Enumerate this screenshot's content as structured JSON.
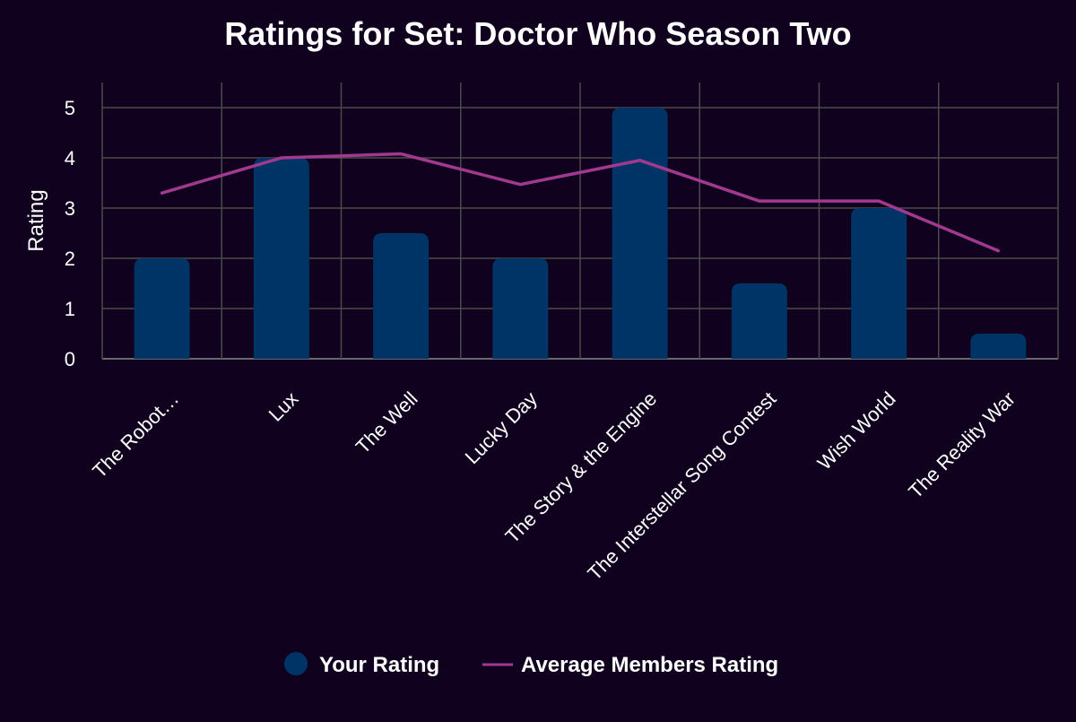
{
  "chart_data": {
    "type": "bar",
    "title": "Ratings for Set: Doctor Who Season Two",
    "ylabel": "Rating",
    "xlabel": "",
    "ylim": [
      0,
      5.5
    ],
    "yticks": [
      0,
      1,
      2,
      3,
      4,
      5
    ],
    "categories": [
      "The Robot…",
      "Lux",
      "The Well",
      "Lucky Day",
      "The Story & the Engine",
      "The Interstellar Song Contest",
      "Wish World",
      "The Reality War"
    ],
    "series": [
      {
        "name": "Your Rating",
        "kind": "bar",
        "color": "#003366",
        "values": [
          2,
          4,
          2.5,
          2,
          5,
          1.5,
          3,
          0.5
        ]
      },
      {
        "name": "Average Members Rating",
        "kind": "line",
        "color": "#a2398f",
        "values": [
          3.3,
          4.0,
          4.08,
          3.47,
          3.95,
          3.14,
          3.14,
          2.15
        ]
      }
    ],
    "grid": true,
    "legend_position": "bottom-center",
    "colors": {
      "background": "#10021e",
      "grid": "#4a4a4a",
      "text": "#ffffff"
    }
  }
}
